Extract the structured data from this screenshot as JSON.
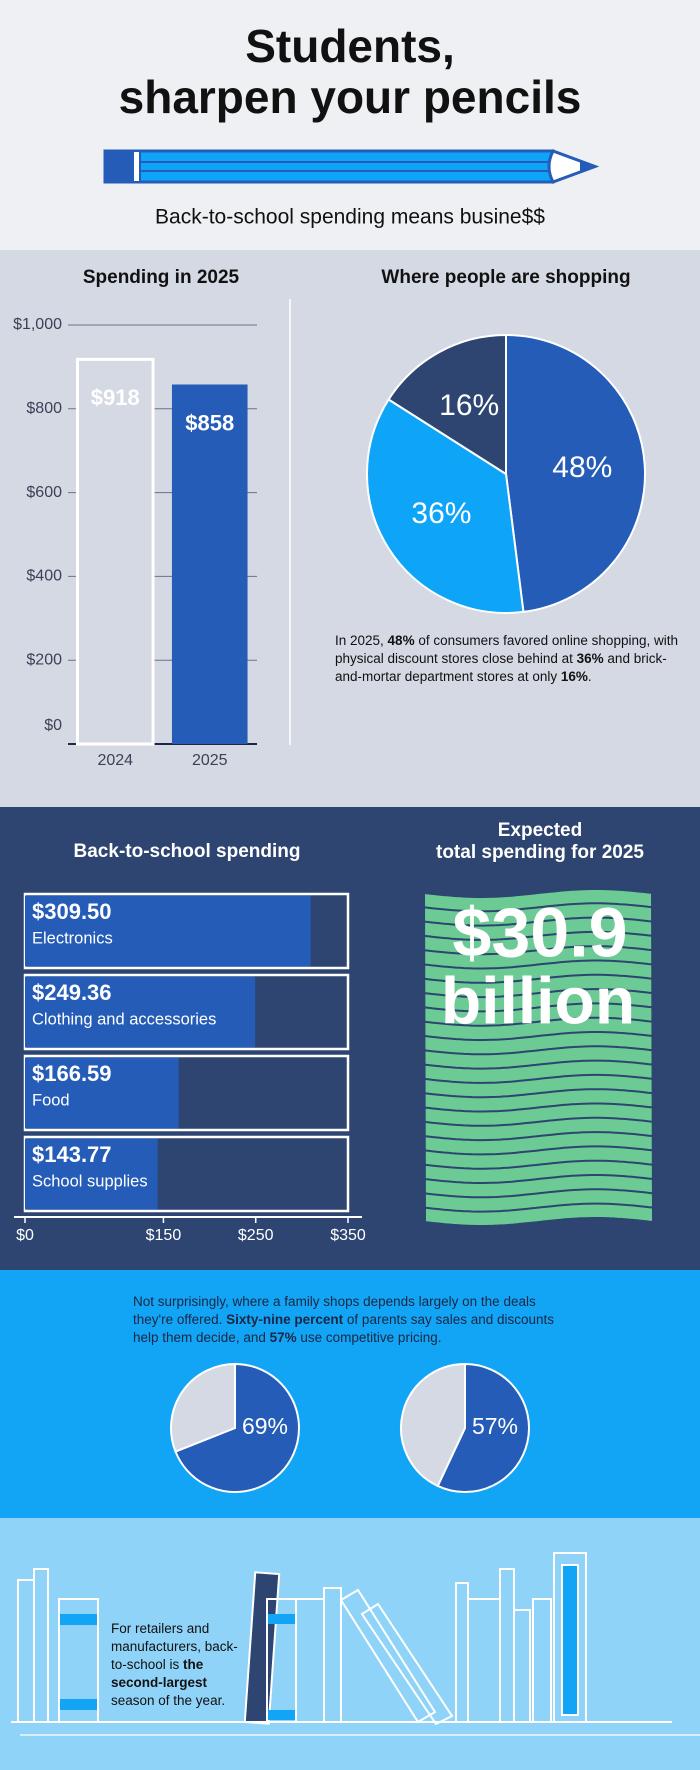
{
  "header": {
    "title": [
      "Students,",
      "sharpen your pencils"
    ],
    "subtitle": "Back-to-school spending means busine$$"
  },
  "chart_data": [
    {
      "type": "bar",
      "title": "Spending in 2025",
      "categories": [
        "2024",
        "2025"
      ],
      "values": [
        918,
        858
      ],
      "value_labels": [
        "$918",
        "$858"
      ],
      "colors": [
        "#d5d9e4",
        "#255cb8"
      ],
      "ylim": [
        0,
        1000
      ],
      "yticks": [
        {
          "value": 0,
          "label": "$0"
        },
        {
          "value": 200,
          "label": "$200"
        },
        {
          "value": 400,
          "label": "$400"
        },
        {
          "value": 600,
          "label": "$600"
        },
        {
          "value": 800,
          "label": "$800"
        },
        {
          "value": 1000,
          "label": "$1,000"
        }
      ],
      "grid": true
    },
    {
      "type": "pie",
      "title": "Where people are shopping",
      "values": [
        48,
        36,
        16
      ],
      "value_labels": [
        "48%",
        "36%",
        "16%"
      ],
      "colors": [
        "#255cb8",
        "#0ea5f8",
        "#2d4570"
      ]
    },
    {
      "type": "hbar",
      "title": "Back-to-school spending",
      "categories": [
        "Electronics",
        "Clothing and accessories",
        "Food",
        "School supplies"
      ],
      "values": [
        309.5,
        249.36,
        166.59,
        143.77
      ],
      "value_labels": [
        "$309.50",
        "$249.36",
        "$166.59",
        "$143.77"
      ],
      "color": "#255cb8",
      "xlim": [
        0,
        350
      ],
      "xticks": [
        {
          "value": 0,
          "label": "$0"
        },
        {
          "value": 150,
          "label": "$150"
        },
        {
          "value": 250,
          "label": "$250"
        },
        {
          "value": 350,
          "label": "$350"
        }
      ]
    },
    {
      "type": "pie",
      "values": [
        69
      ],
      "value_labels": [
        "69%"
      ],
      "colors": [
        "#255cb8"
      ],
      "remainder_color": "#d5d9e4"
    },
    {
      "type": "pie",
      "values": [
        57
      ],
      "value_labels": [
        "57%"
      ],
      "colors": [
        "#255cb8"
      ],
      "remainder_color": "#d5d9e4"
    }
  ],
  "pie_note": [
    {
      "text": "In 2025, "
    },
    {
      "text": "48%",
      "bold": true
    },
    {
      "text": " of consumers favored online shopping, with physical discount stores close behind at "
    },
    {
      "text": "36%",
      "bold": true
    },
    {
      "text": " and brick-and-mortar department stores at only "
    },
    {
      "text": "16%",
      "bold": true
    },
    {
      "text": "."
    }
  ],
  "total": {
    "title": [
      "Expected",
      "total spending for 2025"
    ],
    "value": [
      "$30.9",
      "billion"
    ]
  },
  "deals_note": [
    {
      "text": "Not surprisingly, where a family shops depends largely on the deals they're offered. "
    },
    {
      "text": "Sixty-nine percent",
      "bold": true
    },
    {
      "text": " of parents say sales and discounts help them decide, and "
    },
    {
      "text": "57%",
      "bold": true
    },
    {
      "text": " use competitive pricing."
    }
  ],
  "footer_note": [
    {
      "text": "For retailers and manufacturers, back-to-school is "
    },
    {
      "text": "the second-largest",
      "bold": true
    },
    {
      "text": " season of the year."
    }
  ]
}
